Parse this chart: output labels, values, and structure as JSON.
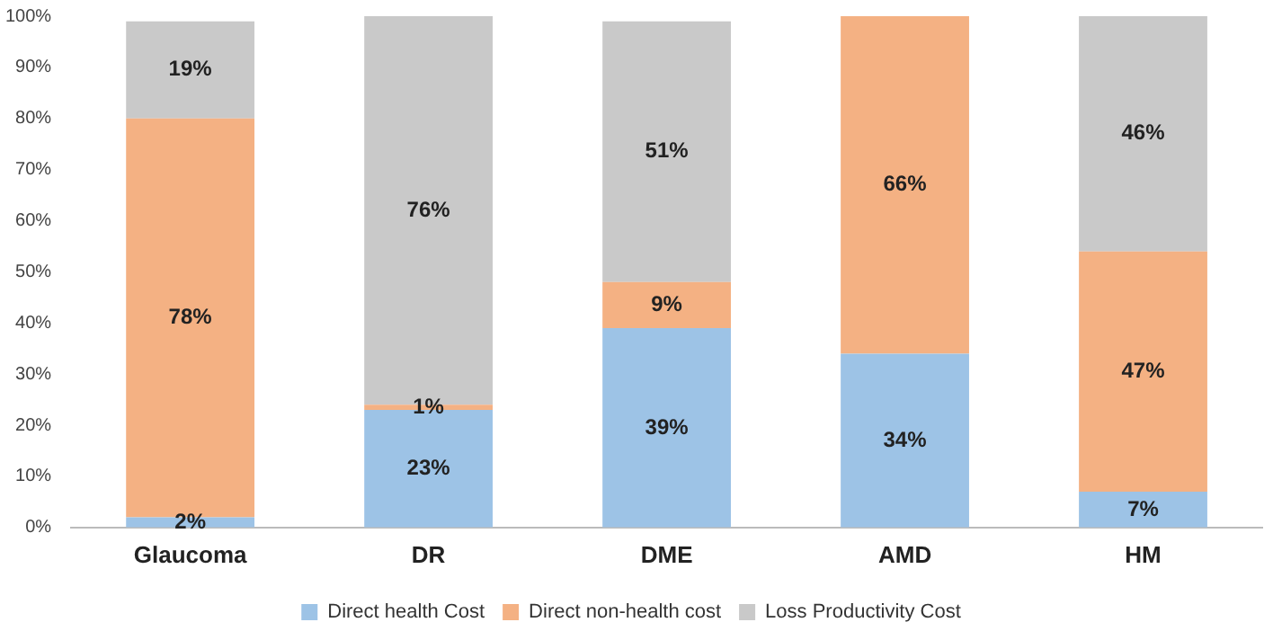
{
  "chart_data": {
    "type": "bar",
    "stacked": true,
    "categories": [
      "Glaucoma",
      "DR",
      "DME",
      "AMD",
      "HM"
    ],
    "series": [
      {
        "name": "Direct health Cost",
        "color": "#9dc3e6",
        "values": [
          2,
          23,
          39,
          34,
          7
        ],
        "value_labels": [
          "2%",
          "23%",
          "39%",
          "34%",
          "7%"
        ]
      },
      {
        "name": "Direct non-health cost",
        "color": "#f4b183",
        "values": [
          78,
          1,
          9,
          66,
          47
        ],
        "value_labels": [
          "78%",
          "1%",
          "9%",
          "66%",
          "47%"
        ]
      },
      {
        "name": "Loss Productivity Cost",
        "color": "#c9c9c9",
        "values": [
          19,
          76,
          51,
          null,
          46
        ],
        "value_labels": [
          "19%",
          "76%",
          "51%",
          null,
          "46%"
        ]
      }
    ],
    "ylim": [
      0,
      100
    ],
    "yticks": [
      {
        "value": 0,
        "label": "0%"
      },
      {
        "value": 10,
        "label": "10%"
      },
      {
        "value": 20,
        "label": "20%"
      },
      {
        "value": 30,
        "label": "30%"
      },
      {
        "value": 40,
        "label": "40%"
      },
      {
        "value": 50,
        "label": "50%"
      },
      {
        "value": 60,
        "label": "60%"
      },
      {
        "value": 70,
        "label": "70%"
      },
      {
        "value": 80,
        "label": "80%"
      },
      {
        "value": 90,
        "label": "90%"
      },
      {
        "value": 100,
        "label": "100%"
      }
    ],
    "grid": false,
    "legend": "bottom"
  }
}
